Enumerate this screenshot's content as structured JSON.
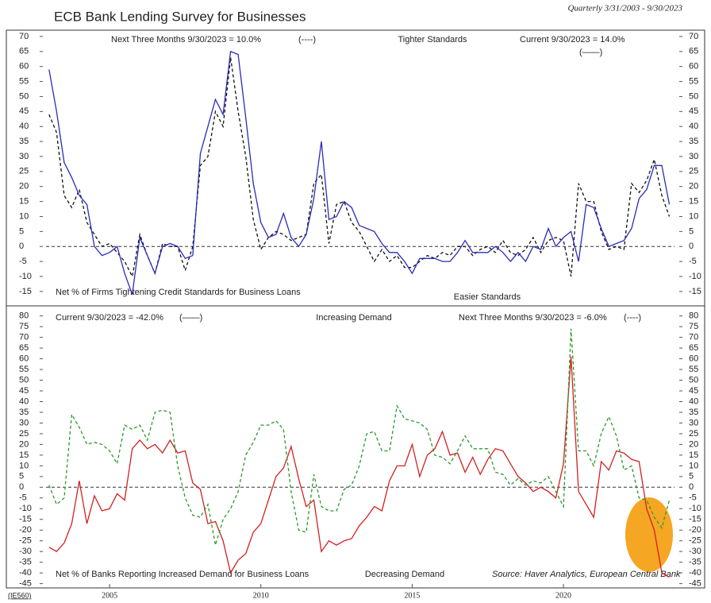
{
  "header": {
    "title": "ECB Bank Lending Survey for Businesses",
    "subtitle": "Quarterly 3/31/2003 - 9/30/2023",
    "code": "(IE560)"
  },
  "chart_data": [
    {
      "type": "line",
      "annotations": [
        "Tighter Standards",
        "Easier Standards",
        "Net % of Firms Tightening Credit Standards for Business Loans"
      ],
      "x": [
        2003,
        2003.25,
        2003.5,
        2003.75,
        2004,
        2004.25,
        2004.5,
        2004.75,
        2005,
        2005.25,
        2005.5,
        2005.75,
        2006,
        2006.25,
        2006.5,
        2006.75,
        2007,
        2007.25,
        2007.5,
        2007.75,
        2008,
        2008.25,
        2008.5,
        2008.75,
        2009,
        2009.25,
        2009.5,
        2009.75,
        2010,
        2010.25,
        2010.5,
        2010.75,
        2011,
        2011.25,
        2011.5,
        2011.75,
        2012,
        2012.25,
        2012.5,
        2012.75,
        2013,
        2013.25,
        2013.5,
        2013.75,
        2014,
        2014.25,
        2014.5,
        2014.75,
        2015,
        2015.25,
        2015.5,
        2015.75,
        2016,
        2016.25,
        2016.5,
        2016.75,
        2017,
        2017.25,
        2017.5,
        2017.75,
        2018,
        2018.25,
        2018.5,
        2018.75,
        2019,
        2019.25,
        2019.5,
        2019.75,
        2020,
        2020.25,
        2020.5,
        2020.75,
        2021,
        2021.25,
        2021.5,
        2021.75,
        2022,
        2022.25,
        2022.5,
        2022.75,
        2023,
        2023.25,
        2023.5
      ],
      "xlim": [
        2002.9,
        2023.67
      ],
      "ylim": [
        -19.8,
        72.1
      ],
      "yticks": [
        -15,
        -10,
        -5,
        0,
        5,
        10,
        15,
        20,
        25,
        30,
        35,
        40,
        45,
        50,
        55,
        60,
        65,
        70
      ],
      "reference_line": 0,
      "series": [
        {
          "name": "Next Three Months 9/30/2023 =  10.0%",
          "legend_key": "(----)",
          "color": "#111111",
          "dashed": true,
          "values": [
            44,
            38,
            17,
            13,
            19,
            8,
            4,
            0,
            1,
            -2,
            -5,
            -10,
            4,
            -3,
            -9,
            1,
            0,
            0,
            -8,
            0,
            27,
            30,
            45,
            40,
            63,
            45,
            30,
            9,
            -1,
            3,
            5,
            4,
            2,
            3,
            4,
            21,
            24,
            1,
            14,
            15,
            8,
            5,
            0,
            -5,
            -1,
            -5,
            -3,
            -7,
            -7,
            -5,
            -3,
            -4,
            -2,
            -3,
            0,
            0,
            -3,
            -1,
            0,
            -2,
            2,
            -2,
            -3,
            -1,
            3,
            -2,
            2,
            3,
            2,
            -10,
            21,
            15,
            15,
            5,
            -1,
            0,
            -1,
            21,
            18,
            22,
            29,
            17,
            10
          ]
        },
        {
          "name": "Current 9/30/2023 =  14.0%",
          "legend_key": "(——)",
          "color": "#2b2bb8",
          "dashed": false,
          "values": [
            59,
            45,
            28,
            23,
            17,
            14,
            0,
            -3,
            -2,
            0,
            -9,
            -16,
            3,
            -3,
            -9,
            0,
            1,
            0,
            -4,
            -3,
            31,
            40,
            49,
            44,
            65,
            64,
            43,
            21,
            8,
            3,
            4,
            11,
            3,
            0,
            4,
            16,
            35,
            9,
            10,
            15,
            13,
            7,
            6,
            5,
            1,
            -2,
            -2,
            -5,
            -9,
            -4,
            -4,
            -4,
            -5,
            -5,
            -2,
            2,
            -2,
            -2,
            -2,
            0,
            -2,
            -5,
            -2,
            -5,
            0,
            -1,
            6,
            0,
            3,
            5,
            -5,
            14,
            13,
            6,
            0,
            1,
            2,
            6,
            16,
            19,
            27,
            27,
            14
          ]
        }
      ]
    },
    {
      "type": "line",
      "annotations": [
        "Increasing Demand",
        "Net % of Banks Reporting Increased Demand for Business Loans",
        "Decreasing Demand",
        "Source: Haver Analytics, European Central Bank"
      ],
      "x": [
        2003,
        2003.25,
        2003.5,
        2003.75,
        2004,
        2004.25,
        2004.5,
        2004.75,
        2005,
        2005.25,
        2005.5,
        2005.75,
        2006,
        2006.25,
        2006.5,
        2006.75,
        2007,
        2007.25,
        2007.5,
        2007.75,
        2008,
        2008.25,
        2008.5,
        2008.75,
        2009,
        2009.25,
        2009.5,
        2009.75,
        2010,
        2010.25,
        2010.5,
        2010.75,
        2011,
        2011.25,
        2011.5,
        2011.75,
        2012,
        2012.25,
        2012.5,
        2012.75,
        2013,
        2013.25,
        2013.5,
        2013.75,
        2014,
        2014.25,
        2014.5,
        2014.75,
        2015,
        2015.25,
        2015.5,
        2015.75,
        2016,
        2016.25,
        2016.5,
        2016.75,
        2017,
        2017.25,
        2017.5,
        2017.75,
        2018,
        2018.25,
        2018.5,
        2018.75,
        2019,
        2019.25,
        2019.5,
        2019.75,
        2020,
        2020.25,
        2020.5,
        2020.75,
        2021,
        2021.25,
        2021.5,
        2021.75,
        2022,
        2022.25,
        2022.5,
        2022.75,
        2023,
        2023.25,
        2023.5
      ],
      "xlim": [
        2002.9,
        2023.67
      ],
      "xticks": [
        2005,
        2010,
        2015,
        2020
      ],
      "ylim": [
        -47,
        84.7
      ],
      "yticks": [
        -45,
        -40,
        -35,
        -30,
        -25,
        -20,
        -15,
        -10,
        -5,
        0,
        5,
        10,
        15,
        20,
        25,
        30,
        35,
        40,
        45,
        50,
        55,
        60,
        65,
        70,
        75,
        80
      ],
      "reference_line": 0,
      "series": [
        {
          "name": "Current 9/30/2023 =  -42.0%",
          "legend_key": "(——)",
          "color": "#d42020",
          "dashed": false,
          "values": [
            -28,
            -30,
            -26,
            -17,
            3,
            -17,
            -4,
            -11,
            -10,
            -3,
            -6,
            18,
            22,
            18,
            20,
            16,
            22,
            16,
            17,
            2,
            -1,
            -17,
            -16,
            -25,
            -40,
            -34,
            -31,
            -21,
            -17,
            -6,
            5,
            9,
            19,
            4,
            -9,
            -6,
            -30,
            -25,
            -27,
            -25,
            -24,
            -18,
            -14,
            -9,
            -11,
            3,
            10,
            10,
            20,
            5,
            15,
            18,
            26,
            15,
            16,
            7,
            14,
            6,
            13,
            18,
            17,
            11,
            5,
            2,
            -2,
            0,
            -2,
            -5,
            11,
            61,
            -2,
            -8,
            -14,
            12,
            8,
            17,
            16,
            13,
            12,
            -10,
            -20,
            -40,
            -42
          ]
        },
        {
          "name": "Next Three Months 9/30/2023 =  -6.0%",
          "legend_key": "(----)",
          "color": "#2a9a2a",
          "dashed": true,
          "values": [
            1,
            -8,
            -5,
            34,
            28,
            20,
            21,
            20,
            17,
            11,
            29,
            27,
            29,
            22,
            35,
            36,
            35,
            10,
            -5,
            -13,
            -14,
            -8,
            -27,
            -15,
            -10,
            -2,
            15,
            21,
            29,
            29,
            31,
            27,
            -2,
            -20,
            -21,
            6,
            -9,
            -11,
            -11,
            -1,
            1,
            10,
            25,
            26,
            17,
            17,
            38,
            32,
            31,
            30,
            27,
            15,
            14,
            11,
            17,
            24,
            18,
            18,
            18,
            7,
            6,
            1,
            4,
            1,
            3,
            2,
            5,
            -2,
            -9,
            74,
            17,
            17,
            10,
            25,
            33,
            24,
            8,
            10,
            -5,
            -6,
            -14,
            -19,
            -6
          ]
        }
      ]
    }
  ]
}
